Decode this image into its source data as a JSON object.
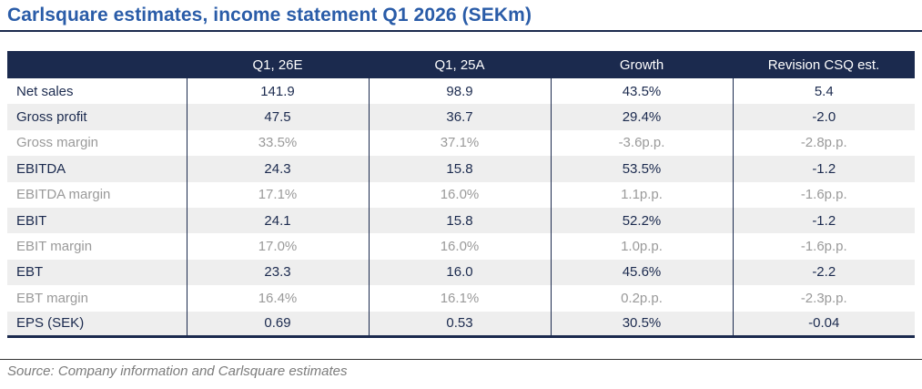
{
  "title": "Carlsquare estimates, income statement Q1 2026 (SEKm)",
  "source": "Source: Company information and Carlsquare estimates",
  "colors": {
    "navy": "#1B2A4E",
    "title-blue": "#2A5CA8",
    "muted-text": "#9A9A9A",
    "row-alt": "#EEEEEE",
    "source-text": "#7C7C7C",
    "rule-dark": "#333333"
  },
  "table": {
    "columns": [
      "",
      "Q1, 26E",
      "Q1, 25A",
      "Growth",
      "Revision CSQ est."
    ],
    "rows": [
      {
        "label": "Net sales",
        "values": [
          "141.9",
          "98.9",
          "43.5%",
          "5.4"
        ],
        "muted": false
      },
      {
        "label": "Gross profit",
        "values": [
          "47.5",
          "36.7",
          "29.4%",
          "-2.0"
        ],
        "muted": false
      },
      {
        "label": "Gross margin",
        "values": [
          "33.5%",
          "37.1%",
          "-3.6p.p.",
          "-2.8p.p."
        ],
        "muted": true
      },
      {
        "label": "EBITDA",
        "values": [
          "24.3",
          "15.8",
          "53.5%",
          "-1.2"
        ],
        "muted": false
      },
      {
        "label": "EBITDA margin",
        "values": [
          "17.1%",
          "16.0%",
          "1.1p.p.",
          "-1.6p.p."
        ],
        "muted": true
      },
      {
        "label": "EBIT",
        "values": [
          "24.1",
          "15.8",
          "52.2%",
          "-1.2"
        ],
        "muted": false
      },
      {
        "label": "EBIT margin",
        "values": [
          "17.0%",
          "16.0%",
          "1.0p.p.",
          "-1.6p.p."
        ],
        "muted": true
      },
      {
        "label": "EBT",
        "values": [
          "23.3",
          "16.0",
          "45.6%",
          "-2.2"
        ],
        "muted": false
      },
      {
        "label": "EBT margin",
        "values": [
          "16.4%",
          "16.1%",
          "0.2p.p.",
          "-2.3p.p."
        ],
        "muted": true
      },
      {
        "label": "EPS (SEK)",
        "values": [
          "0.69",
          "0.53",
          "30.5%",
          "-0.04"
        ],
        "muted": false
      }
    ]
  }
}
